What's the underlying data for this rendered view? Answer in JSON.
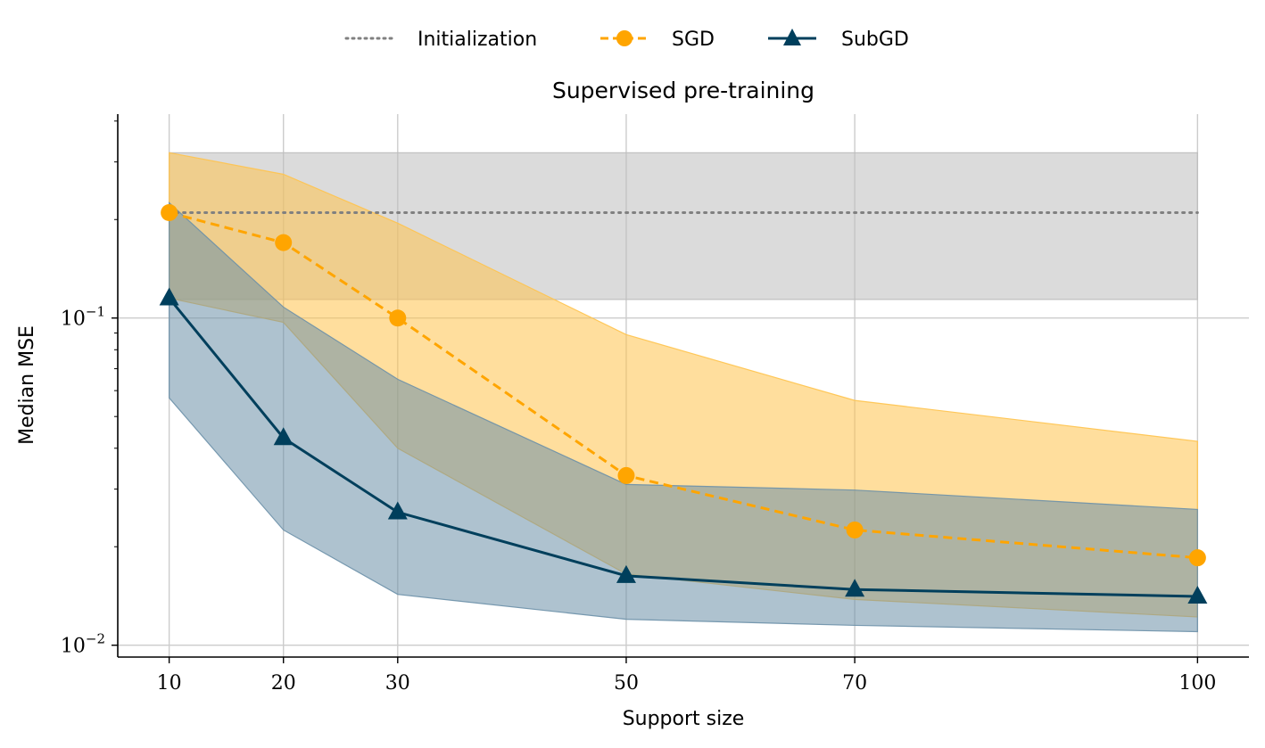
{
  "chart_data": {
    "type": "line",
    "title": "Supervised pre-training",
    "xlabel": "Support size",
    "ylabel": "Median MSE",
    "yscale": "log",
    "ylim": [
      0.0092,
      0.42
    ],
    "xlim": [
      5.5,
      104.5
    ],
    "x": [
      10,
      20,
      30,
      50,
      70,
      100
    ],
    "xticks": [
      10,
      20,
      30,
      50,
      70,
      100
    ],
    "yticks": [
      {
        "value": 0.1,
        "base": "10",
        "exp": "−1"
      },
      {
        "value": 0.01,
        "base": "10",
        "exp": "−2"
      }
    ],
    "grid": true,
    "legend_position": "top-center",
    "series": [
      {
        "name": "Initialization",
        "style": "dotted",
        "color": "#808080",
        "band_color": "#bdbdbd",
        "values": [
          0.21,
          0.21,
          0.21,
          0.21,
          0.21,
          0.21
        ],
        "lower": [
          0.114,
          0.114,
          0.114,
          0.114,
          0.114,
          0.114
        ],
        "upper": [
          0.32,
          0.32,
          0.32,
          0.32,
          0.32,
          0.32
        ]
      },
      {
        "name": "SGD",
        "style": "dashed",
        "marker": "circle",
        "color": "#FFA500",
        "band_color": "#FFC34D",
        "values": [
          0.21,
          0.17,
          0.1,
          0.033,
          0.0225,
          0.0185
        ],
        "lower": [
          0.115,
          0.097,
          0.04,
          0.0165,
          0.0138,
          0.0122
        ],
        "upper": [
          0.32,
          0.275,
          0.195,
          0.089,
          0.056,
          0.042
        ]
      },
      {
        "name": "SubGD",
        "style": "solid",
        "marker": "triangle",
        "color": "#003F5C",
        "band_color": "#6B90A8",
        "values": [
          0.115,
          0.043,
          0.0255,
          0.0163,
          0.0148,
          0.0141
        ],
        "lower": [
          0.057,
          0.0225,
          0.0143,
          0.012,
          0.0115,
          0.011
        ],
        "upper": [
          0.225,
          0.108,
          0.065,
          0.031,
          0.0298,
          0.026
        ]
      }
    ]
  }
}
